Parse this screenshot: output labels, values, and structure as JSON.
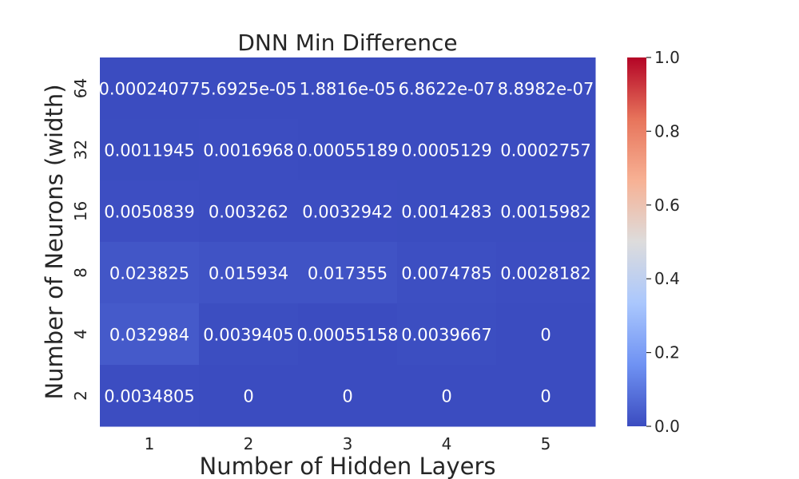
{
  "chart_data": {
    "type": "heatmap",
    "title": "DNN Min Difference",
    "xlabel": "Number of Hidden Layers",
    "ylabel": "Number of Neurons (width)",
    "x_categories": [
      "1",
      "2",
      "3",
      "4",
      "5"
    ],
    "y_categories": [
      "64",
      "32",
      "16",
      "8",
      "4",
      "2"
    ],
    "values": [
      [
        0.00024077,
        5.6925e-05,
        1.8816e-05,
        6.8622e-07,
        8.8982e-07
      ],
      [
        0.0011945,
        0.0016968,
        0.00055189,
        0.0005129,
        0.0002757
      ],
      [
        0.0050839,
        0.003262,
        0.0032942,
        0.0014283,
        0.0015982
      ],
      [
        0.023825,
        0.015934,
        0.017355,
        0.0074785,
        0.0028182
      ],
      [
        0.032984,
        0.0039405,
        0.00055158,
        0.0039667,
        0
      ],
      [
        0.0034805,
        0,
        0,
        0,
        0
      ]
    ],
    "annotations": [
      [
        "0.00024077",
        "5.6925e-05",
        "1.8816e-05",
        "6.8622e-07",
        "8.8982e-07"
      ],
      [
        "0.0011945",
        "0.0016968",
        "0.00055189",
        "0.0005129",
        "0.0002757"
      ],
      [
        "0.0050839",
        "0.003262",
        "0.0032942",
        "0.0014283",
        "0.0015982"
      ],
      [
        "0.023825",
        "0.015934",
        "0.017355",
        "0.0074785",
        "0.0028182"
      ],
      [
        "0.032984",
        "0.0039405",
        "0.00055158",
        "0.0039667",
        "0"
      ],
      [
        "0.0034805",
        "0",
        "0",
        "0",
        "0"
      ]
    ],
    "colorbar": {
      "range": [
        0.0,
        1.0
      ],
      "ticks": [
        "0.0",
        "0.2",
        "0.4",
        "0.6",
        "0.8",
        "1.0"
      ],
      "colormap": "coolwarm",
      "colors": [
        "#3b4cc0",
        "#6f92f3",
        "#aac7fd",
        "#dddcdc",
        "#f7b194",
        "#e7745b",
        "#b40426"
      ]
    },
    "grid": false
  }
}
